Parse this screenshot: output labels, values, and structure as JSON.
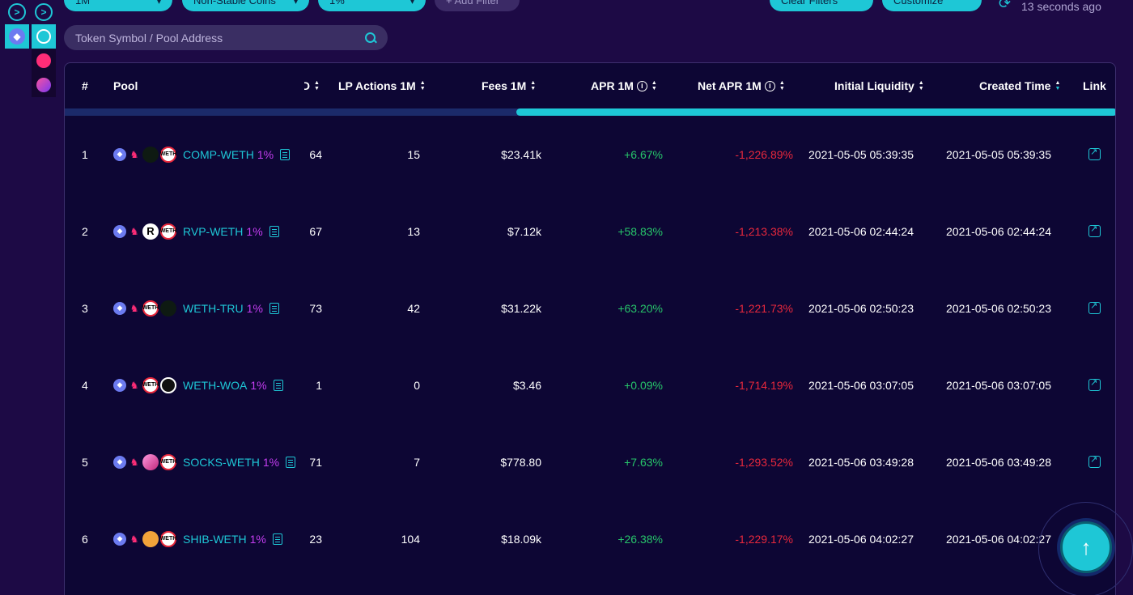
{
  "filters": [
    {
      "label": "1M"
    },
    {
      "label": "Non-Stable Coins"
    },
    {
      "label": "1%"
    }
  ],
  "add_filter_label": "+ Add Filter",
  "clear_filters_label": "Clear Filters",
  "customize_label": "Customize",
  "updated_text": "13 seconds ago",
  "search": {
    "placeholder": "Token Symbol / Pool Address"
  },
  "columns": {
    "index": "#",
    "pool": "Pool",
    "cut": "D",
    "lp_actions": "LP Actions 1M",
    "fees": "Fees 1M",
    "apr": "APR 1M",
    "net_apr": "Net APR 1M",
    "initial_liquidity": "Initial Liquidity",
    "created_time": "Created Time",
    "link": "Link"
  },
  "rows": [
    {
      "index": "1",
      "pool": "COMP-WETH",
      "fee": "1%",
      "cut": "64",
      "lp_actions": "15",
      "fees": "$23.41k",
      "apr": "+6.67%",
      "net_apr": "-1,226.89%",
      "initial_liquidity": "2021-05-05 05:39:35",
      "created_time": "2021-05-05 05:39:35",
      "tokens": [
        "comp",
        "weth"
      ]
    },
    {
      "index": "2",
      "pool": "RVP-WETH",
      "fee": "1%",
      "cut": "67",
      "lp_actions": "13",
      "fees": "$7.12k",
      "apr": "+58.83%",
      "net_apr": "-1,213.38%",
      "initial_liquidity": "2021-05-06 02:44:24",
      "created_time": "2021-05-06 02:44:24",
      "tokens": [
        "rvp",
        "weth"
      ]
    },
    {
      "index": "3",
      "pool": "WETH-TRU",
      "fee": "1%",
      "cut": "73",
      "lp_actions": "42",
      "fees": "$31.22k",
      "apr": "+63.20%",
      "net_apr": "-1,221.73%",
      "initial_liquidity": "2021-05-06 02:50:23",
      "created_time": "2021-05-06 02:50:23",
      "tokens": [
        "weth",
        "tru"
      ]
    },
    {
      "index": "4",
      "pool": "WETH-WOA",
      "fee": "1%",
      "cut": "1",
      "lp_actions": "0",
      "fees": "$3.46",
      "apr": "+0.09%",
      "net_apr": "-1,714.19%",
      "initial_liquidity": "2021-05-06 03:07:05",
      "created_time": "2021-05-06 03:07:05",
      "tokens": [
        "weth",
        "woa"
      ]
    },
    {
      "index": "5",
      "pool": "SOCKS-WETH",
      "fee": "1%",
      "cut": "71",
      "lp_actions": "7",
      "fees": "$778.80",
      "apr": "+7.63%",
      "net_apr": "-1,293.52%",
      "initial_liquidity": "2021-05-06 03:49:28",
      "created_time": "2021-05-06 03:49:28",
      "tokens": [
        "socks",
        "weth"
      ]
    },
    {
      "index": "6",
      "pool": "SHIB-WETH",
      "fee": "1%",
      "cut": "23",
      "lp_actions": "104",
      "fees": "$18.09k",
      "apr": "+26.38%",
      "net_apr": "-1,229.17%",
      "initial_liquidity": "2021-05-06 04:02:27",
      "created_time": "2021-05-06 04:02:27",
      "tokens": [
        "shib",
        "weth"
      ]
    }
  ],
  "token_text": {
    "weth": "WETH",
    "rvp": "R"
  },
  "colors": {
    "accent": "#1ec7d6",
    "positive": "#27c46a",
    "negative": "#e8283c",
    "fee": "#c43df0",
    "background": "#1d0a45"
  }
}
